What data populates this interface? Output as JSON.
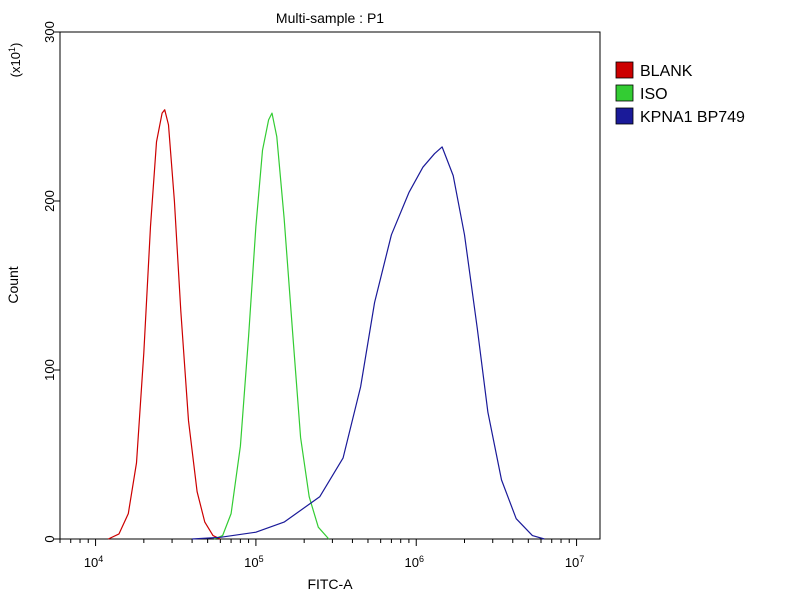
{
  "chart_data": {
    "type": "line",
    "title": "Multi-sample : P1",
    "xlabel": "FITC-A",
    "ylabel": "Count",
    "y_multiplier_label": "(x10",
    "y_multiplier_exp": "1",
    "x_scale": "log",
    "xlim": [
      6000,
      14000000
    ],
    "ylim": [
      0,
      300
    ],
    "x_ticks": [
      {
        "base": "10",
        "exp": "4",
        "value": 10000
      },
      {
        "base": "10",
        "exp": "5",
        "value": 100000
      },
      {
        "base": "10",
        "exp": "6",
        "value": 1000000
      },
      {
        "base": "10",
        "exp": "7",
        "value": 10000000
      }
    ],
    "y_ticks": [
      {
        "label": "0",
        "value": 0
      },
      {
        "label": "100",
        "value": 100
      },
      {
        "label": "200",
        "value": 200
      },
      {
        "label": "300",
        "value": 300
      }
    ],
    "legend_position": "right",
    "series": [
      {
        "name": "BLANK",
        "color": "#cc0000",
        "points": [
          [
            12000,
            0
          ],
          [
            14000,
            3
          ],
          [
            16000,
            15
          ],
          [
            18000,
            45
          ],
          [
            20000,
            110
          ],
          [
            22000,
            185
          ],
          [
            24000,
            235
          ],
          [
            26000,
            252
          ],
          [
            27000,
            254
          ],
          [
            28500,
            245
          ],
          [
            31000,
            200
          ],
          [
            34000,
            135
          ],
          [
            38000,
            70
          ],
          [
            43000,
            28
          ],
          [
            48000,
            10
          ],
          [
            54000,
            2
          ],
          [
            60000,
            0
          ]
        ]
      },
      {
        "name": "ISO",
        "color": "#33cc33",
        "points": [
          [
            55000,
            0
          ],
          [
            62000,
            2
          ],
          [
            70000,
            15
          ],
          [
            80000,
            55
          ],
          [
            90000,
            120
          ],
          [
            100000,
            185
          ],
          [
            110000,
            230
          ],
          [
            120000,
            248
          ],
          [
            126000,
            252
          ],
          [
            135000,
            238
          ],
          [
            150000,
            190
          ],
          [
            170000,
            120
          ],
          [
            190000,
            60
          ],
          [
            215000,
            25
          ],
          [
            245000,
            7
          ],
          [
            285000,
            0
          ]
        ]
      },
      {
        "name": "KPNA1 BP749",
        "color": "#1a1a99",
        "points": [
          [
            40000,
            0
          ],
          [
            60000,
            1
          ],
          [
            100000,
            4
          ],
          [
            150000,
            10
          ],
          [
            250000,
            25
          ],
          [
            350000,
            48
          ],
          [
            450000,
            90
          ],
          [
            550000,
            140
          ],
          [
            700000,
            180
          ],
          [
            900000,
            205
          ],
          [
            1100000,
            220
          ],
          [
            1300000,
            228
          ],
          [
            1450000,
            232
          ],
          [
            1700000,
            215
          ],
          [
            2000000,
            180
          ],
          [
            2400000,
            125
          ],
          [
            2800000,
            75
          ],
          [
            3400000,
            35
          ],
          [
            4200000,
            12
          ],
          [
            5300000,
            2
          ],
          [
            6300000,
            0
          ]
        ]
      }
    ]
  }
}
